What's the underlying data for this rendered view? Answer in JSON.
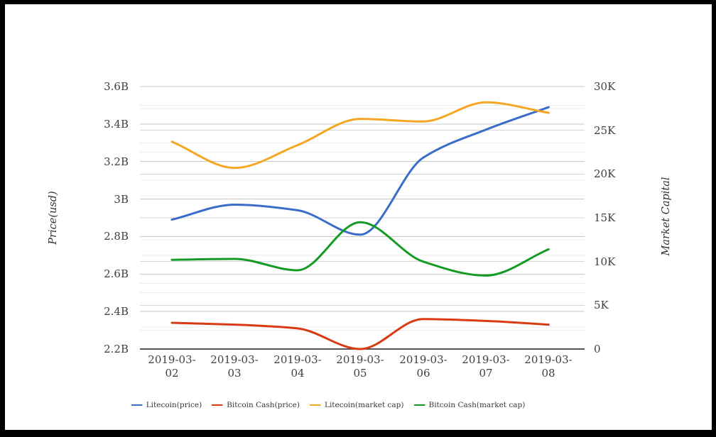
{
  "chart_data": {
    "type": "line",
    "title": "",
    "curve": "smooth",
    "grid": true,
    "legend_position": "bottom",
    "x": [
      "2019-03-02",
      "2019-03-03",
      "2019-03-04",
      "2019-03-05",
      "2019-03-06",
      "2019-03-07",
      "2019-03-08"
    ],
    "x_tick_lines": [
      [
        "2019-03-",
        "02"
      ],
      [
        "2019-03-",
        "03"
      ],
      [
        "2019-03-",
        "04"
      ],
      [
        "2019-03-",
        "05"
      ],
      [
        "2019-03-",
        "06"
      ],
      [
        "2019-03-",
        "07"
      ],
      [
        "2019-03-",
        "08"
      ]
    ],
    "left_axis": {
      "label": "Price(usd)",
      "min": 2.2,
      "max": 3.6,
      "tick_step": 0.2,
      "ticks": [
        "3.6B",
        "3.4B",
        "3.2B",
        "3B",
        "2.8B",
        "2.6B",
        "2.4B",
        "2.2B"
      ]
    },
    "right_axis": {
      "label": "Market Capital",
      "min": 0,
      "max": 30,
      "tick_step": 5,
      "ticks": [
        "30K",
        "25K",
        "20K",
        "15K",
        "10K",
        "5K",
        "0"
      ]
    },
    "series": [
      {
        "name": "Litecoin(price)",
        "axis": "left",
        "unit": "B",
        "color": "#3B6CC7",
        "values": [
          2.89,
          2.97,
          2.94,
          2.81,
          3.22,
          3.37,
          3.49
        ]
      },
      {
        "name": "Bitcoin Cash(price)",
        "axis": "left",
        "unit": "B",
        "color": "#D83A14",
        "values": [
          2.34,
          2.33,
          2.31,
          2.2,
          2.36,
          2.35,
          2.33
        ]
      },
      {
        "name": "Litecoin(market cap)",
        "axis": "right",
        "unit": "K",
        "color": "#F5A623",
        "values": [
          23.7,
          20.7,
          23.3,
          26.3,
          26.0,
          28.2,
          27.0
        ]
      },
      {
        "name": "Bitcoin Cash(market cap)",
        "axis": "right",
        "unit": "K",
        "color": "#149B24",
        "values": [
          10.2,
          10.3,
          9.0,
          14.5,
          10.0,
          8.4,
          11.4
        ]
      }
    ]
  },
  "frame": {
    "border_color": "#000000",
    "background": "#FFFFFF"
  }
}
